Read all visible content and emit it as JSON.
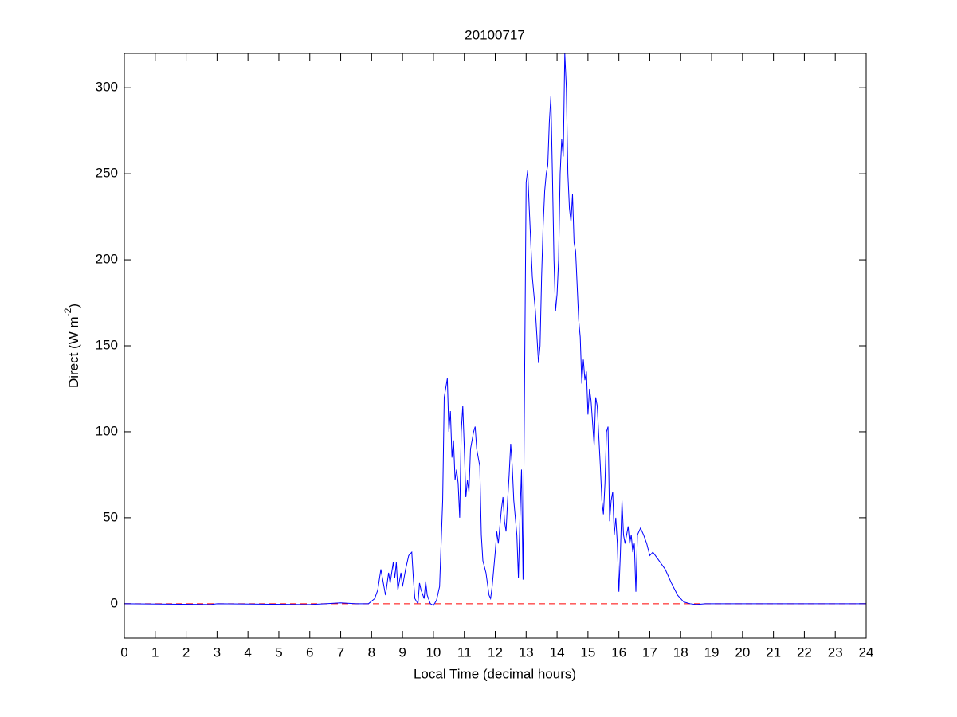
{
  "chart_data": {
    "type": "line",
    "title": "20100717",
    "xlabel": "Local Time (decimal hours)",
    "ylabel": {
      "text": "Direct (W m",
      "superscript": "-2",
      "suffix": ")"
    },
    "x": [
      0,
      2.8,
      3,
      6,
      6.5,
      7,
      7.5,
      7.9,
      8.1,
      8.2,
      8.3,
      8.4,
      8.45,
      8.55,
      8.6,
      8.7,
      8.75,
      8.8,
      8.85,
      8.95,
      9.0,
      9.05,
      9.1,
      9.2,
      9.3,
      9.35,
      9.4,
      9.5,
      9.55,
      9.6,
      9.7,
      9.75,
      9.8,
      9.9,
      10.0,
      10.1,
      10.2,
      10.3,
      10.35,
      10.45,
      10.5,
      10.55,
      10.6,
      10.65,
      10.7,
      10.75,
      10.8,
      10.85,
      10.9,
      10.95,
      11.0,
      11.05,
      11.1,
      11.15,
      11.2,
      11.25,
      11.3,
      11.35,
      11.4,
      11.5,
      11.55,
      11.6,
      11.7,
      11.8,
      11.85,
      11.9,
      11.95,
      12.0,
      12.05,
      12.1,
      12.15,
      12.2,
      12.25,
      12.3,
      12.35,
      12.4,
      12.45,
      12.5,
      12.55,
      12.6,
      12.7,
      12.75,
      12.8,
      12.85,
      12.9,
      12.95,
      13.0,
      13.05,
      13.1,
      13.15,
      13.2,
      13.25,
      13.3,
      13.4,
      13.45,
      13.5,
      13.55,
      13.6,
      13.65,
      13.7,
      13.75,
      13.8,
      13.85,
      13.9,
      13.95,
      14.0,
      14.05,
      14.1,
      14.15,
      14.2,
      14.25,
      14.3,
      14.35,
      14.4,
      14.45,
      14.5,
      14.55,
      14.6,
      14.7,
      14.75,
      14.8,
      14.85,
      14.9,
      14.95,
      15.0,
      15.05,
      15.1,
      15.15,
      15.2,
      15.25,
      15.3,
      15.4,
      15.45,
      15.5,
      15.55,
      15.6,
      15.65,
      15.7,
      15.75,
      15.8,
      15.85,
      15.9,
      15.95,
      16.0,
      16.05,
      16.1,
      16.15,
      16.2,
      16.3,
      16.35,
      16.4,
      16.45,
      16.5,
      16.55,
      16.6,
      16.7,
      16.8,
      16.9,
      17.0,
      17.1,
      17.3,
      17.5,
      17.7,
      17.9,
      18.1,
      18.3,
      18.5,
      18.8,
      24
    ],
    "series": [
      {
        "color": "#0000ff",
        "values": [
          0,
          -0.5,
          0,
          -0.5,
          0,
          0.5,
          0,
          0,
          3,
          8,
          20,
          10,
          5,
          18,
          12,
          24,
          15,
          24,
          8,
          18,
          10,
          15,
          20,
          28,
          30,
          15,
          3,
          0,
          12,
          8,
          3,
          13,
          5,
          0,
          -1,
          2,
          10,
          60,
          120,
          131,
          100,
          112,
          85,
          95,
          72,
          78,
          70,
          50,
          100,
          115,
          90,
          62,
          72,
          65,
          90,
          95,
          100,
          103,
          90,
          80,
          40,
          25,
          18,
          5,
          3,
          10,
          20,
          30,
          42,
          35,
          45,
          55,
          62,
          48,
          42,
          60,
          75,
          93,
          80,
          60,
          40,
          15,
          50,
          78,
          14,
          130,
          245,
          252,
          230,
          210,
          190,
          180,
          170,
          140,
          150,
          190,
          220,
          240,
          250,
          255,
          280,
          295,
          250,
          200,
          170,
          180,
          200,
          250,
          270,
          260,
          320,
          300,
          250,
          230,
          222,
          238,
          210,
          205,
          165,
          155,
          128,
          142,
          130,
          135,
          110,
          125,
          118,
          105,
          92,
          120,
          115,
          80,
          60,
          52,
          70,
          100,
          103,
          48,
          60,
          65,
          40,
          50,
          35,
          7,
          30,
          60,
          40,
          35,
          45,
          35,
          40,
          30,
          35,
          7,
          40,
          44,
          40,
          35,
          28,
          30,
          25,
          20,
          12,
          5,
          1,
          0,
          -0.5,
          0,
          0
        ]
      }
    ],
    "reference_line": {
      "y": 0,
      "color": "#ff0000",
      "style": "dashed"
    },
    "xlim": [
      0,
      24
    ],
    "xticks": [
      0,
      1,
      2,
      3,
      4,
      5,
      6,
      7,
      8,
      9,
      10,
      11,
      12,
      13,
      14,
      15,
      16,
      17,
      18,
      19,
      20,
      21,
      22,
      23,
      24
    ],
    "ylim": [
      -20,
      320
    ],
    "yticks": [
      0,
      50,
      100,
      150,
      200,
      250,
      300
    ]
  }
}
